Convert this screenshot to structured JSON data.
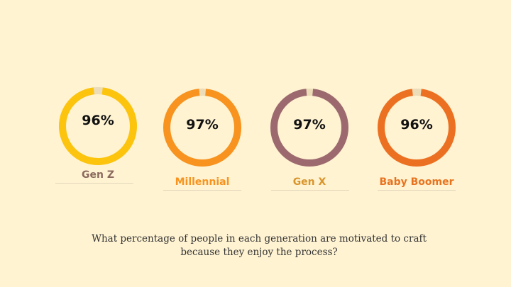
{
  "chart_data": {
    "type": "pie",
    "title": "What percentage of people in each generation are motivated to craft because they enjoy the process?",
    "track_color": "#ecdcb8",
    "items": [
      {
        "label": "Gen Z",
        "value": 96,
        "display": "96%",
        "ring_color": "#fcc40c",
        "label_color": "#8c6a5f"
      },
      {
        "label": "Millennial",
        "value": 97,
        "display": "97%",
        "ring_color": "#f7931e",
        "label_color": "#f7931e"
      },
      {
        "label": "Gen X",
        "value": 97,
        "display": "97%",
        "ring_color": "#9c6a6e",
        "label_color": "#d9952c"
      },
      {
        "label": "Baby Boomer",
        "value": 96,
        "display": "96%",
        "ring_color": "#ec7021",
        "label_color": "#e8731f"
      }
    ]
  },
  "caption": {
    "line1": "What percentage of people in each generation are motivated to craft",
    "line2": "because they enjoy the process?"
  }
}
